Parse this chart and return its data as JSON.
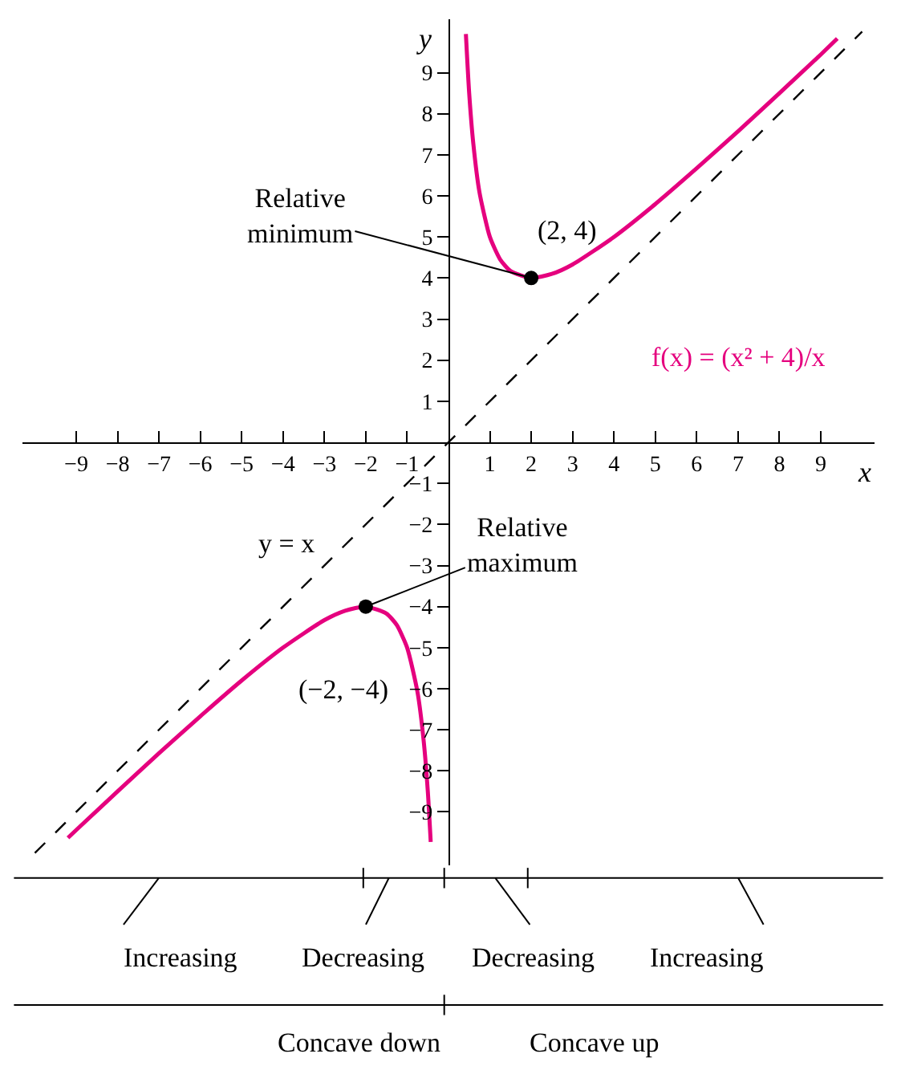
{
  "chart_data": {
    "type": "line",
    "xlabel": "x",
    "ylabel": "y",
    "xlim": [
      -10.3,
      10.3
    ],
    "ylim": [
      -10.3,
      10.3
    ],
    "xticks": [
      -9,
      -8,
      -7,
      -6,
      -5,
      -4,
      -3,
      -2,
      -1,
      1,
      2,
      3,
      4,
      5,
      6,
      7,
      8,
      9
    ],
    "yticks": [
      -9,
      -8,
      -7,
      -6,
      -5,
      -4,
      -3,
      -2,
      -1,
      1,
      2,
      3,
      4,
      5,
      6,
      7,
      8,
      9
    ],
    "grid": false,
    "series": [
      {
        "name": "y = x",
        "type": "line",
        "color": "#000000",
        "line_style": "dashed",
        "x": [
          -10,
          10
        ],
        "values": [
          -10,
          10
        ]
      },
      {
        "name": "f(x) = (x² + 4)/x",
        "type": "line",
        "color": "#e5007e",
        "line_style": "solid",
        "x": [
          0.42,
          0.5,
          0.6,
          0.75,
          1,
          1.25,
          1.5,
          2,
          2.5,
          3,
          4,
          5,
          6,
          7,
          8,
          9,
          9.4
        ],
        "values": [
          9.94,
          8.5,
          7.27,
          6.08,
          5,
          4.45,
          4.17,
          4,
          4.1,
          4.33,
          5,
          5.8,
          6.67,
          7.57,
          8.5,
          9.44,
          9.83
        ]
      },
      {
        "type": "line",
        "color": "#e5007e",
        "line_style": "solid",
        "x": [
          -9.2,
          -9,
          -8,
          -7,
          -6,
          -5,
          -4,
          -3,
          -2.5,
          -2,
          -1.5,
          -1.25,
          -1,
          -0.75,
          -0.6,
          -0.5,
          -0.43
        ],
        "values": [
          -9.63,
          -9.44,
          -8.5,
          -7.57,
          -6.67,
          -5.8,
          -5,
          -4.33,
          -4.1,
          -4,
          -4.17,
          -4.45,
          -5,
          -6.08,
          -7.27,
          -8.5,
          -9.73
        ]
      },
      {
        "type": "scatter",
        "color": "#000000",
        "marker": "circle",
        "x": [
          2,
          -2
        ],
        "values": [
          4,
          -4
        ]
      }
    ],
    "annotations": [
      {
        "text": "Relative minimum",
        "x": 2,
        "y": 4
      },
      "(2, 4)",
      {
        "text": "Relative maximum",
        "x": -2,
        "y": -4
      },
      "(−2, −4)",
      "Increasing",
      "Decreasing",
      "Decreasing",
      "Increasing",
      "Concave down",
      "Concave up"
    ]
  }
}
